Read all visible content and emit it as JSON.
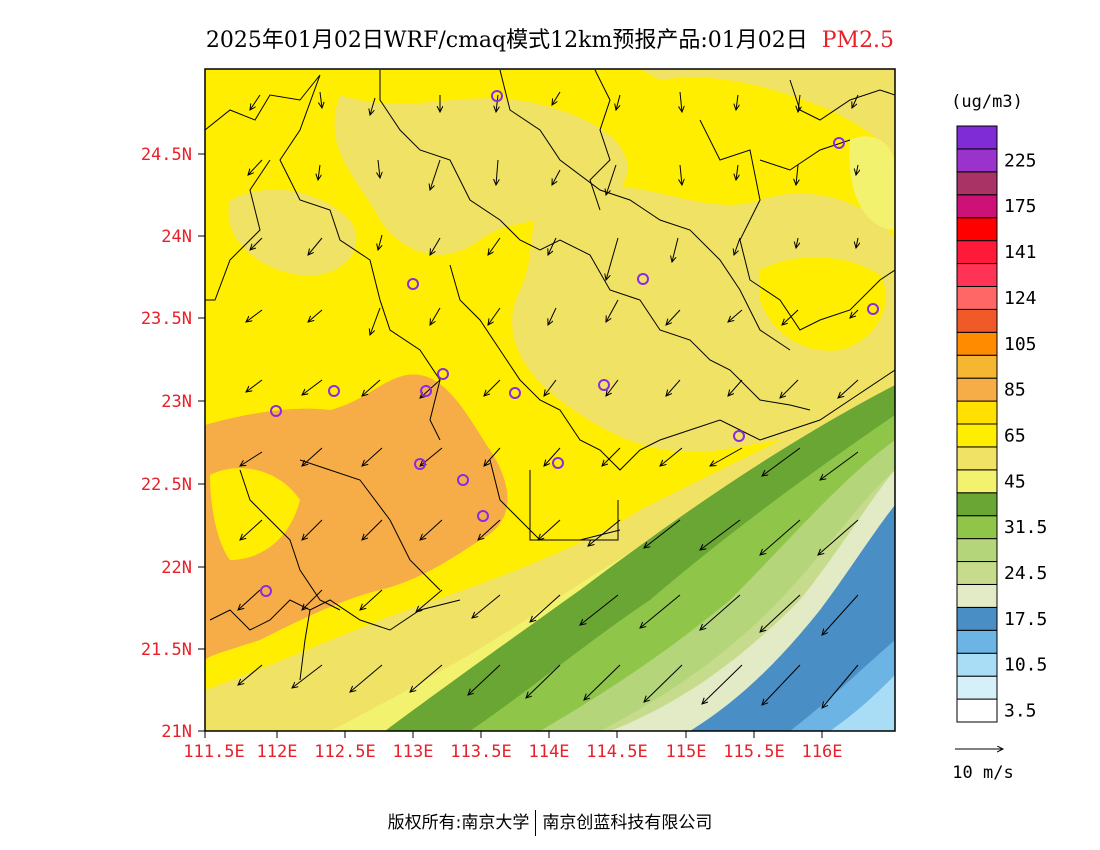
{
  "title": {
    "main": "2025年01月02日WRF/cmaq模式12km预报产品:01月02日",
    "pollutant": "PM2.5"
  },
  "map": {
    "x_ticks": [
      "111.5E",
      "112E",
      "112.5E",
      "113E",
      "113.5E",
      "114E",
      "114.5E",
      "115E",
      "115.5E",
      "116E"
    ],
    "y_ticks": [
      "24.5N",
      "24N",
      "23.5N",
      "23N",
      "22.5N",
      "22N",
      "21.5N",
      "21N"
    ],
    "tick_color": "#e8202a"
  },
  "legend": {
    "unit": "(ug/m3)",
    "colors": [
      "#ffffff",
      "#d6f0fa",
      "#a8ddf5",
      "#6cb4e4",
      "#4a8ec6",
      "#e3ebc6",
      "#c7db8c",
      "#b4d57a",
      "#8fc64a",
      "#6aa634",
      "#f2f26e",
      "#f0e264",
      "#ffee00",
      "#ffe000",
      "#f7ad47",
      "#f5b632",
      "#ff8c00",
      "#f05a28",
      "#ff6666",
      "#ff3355",
      "#ff1a3a",
      "#ff0000",
      "#cc1177",
      "#aa3366",
      "#9933cc",
      "#7f2cd6"
    ],
    "labels": [
      "3.5",
      "10.5",
      "17.5",
      "24.5",
      "31.5",
      "45",
      "65",
      "85",
      "105",
      "124",
      "141",
      "175",
      "225"
    ]
  },
  "wind_ref": {
    "label": "10 m/s"
  },
  "footer": {
    "left": "版权所有:南京大学",
    "right": "南京创蓝科技有限公司"
  }
}
